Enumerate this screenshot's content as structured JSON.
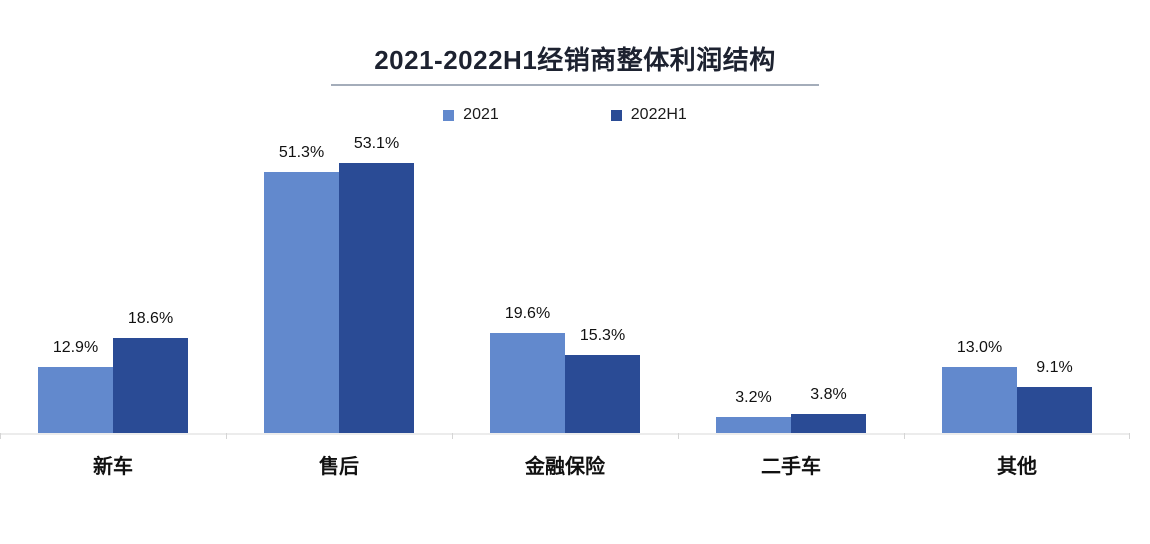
{
  "chart_data": {
    "type": "bar",
    "title": "2021-2022H1经销商整体利润结构",
    "categories": [
      "新车",
      "售后",
      "金融保险",
      "二手车",
      "其他"
    ],
    "series": [
      {
        "name": "2021",
        "color": "#6289cd",
        "values": [
          12.9,
          51.3,
          19.6,
          3.2,
          13.0
        ],
        "labels": [
          "12.9%",
          "51.3%",
          "19.6%",
          "3.2%",
          "13.0%"
        ]
      },
      {
        "name": "2022H1",
        "color": "#2a4b95",
        "values": [
          18.6,
          53.1,
          15.3,
          3.8,
          9.1
        ],
        "labels": [
          "18.6%",
          "53.1%",
          "15.3%",
          "3.8%",
          "9.1%"
        ]
      }
    ],
    "ylim": [
      0,
      60
    ],
    "ylabel": "",
    "xlabel": "",
    "grid": false,
    "legend_position": "top",
    "value_label_format": "percent",
    "accent_underline_color": "#a4adba",
    "axis_line_color": "#ececec"
  }
}
